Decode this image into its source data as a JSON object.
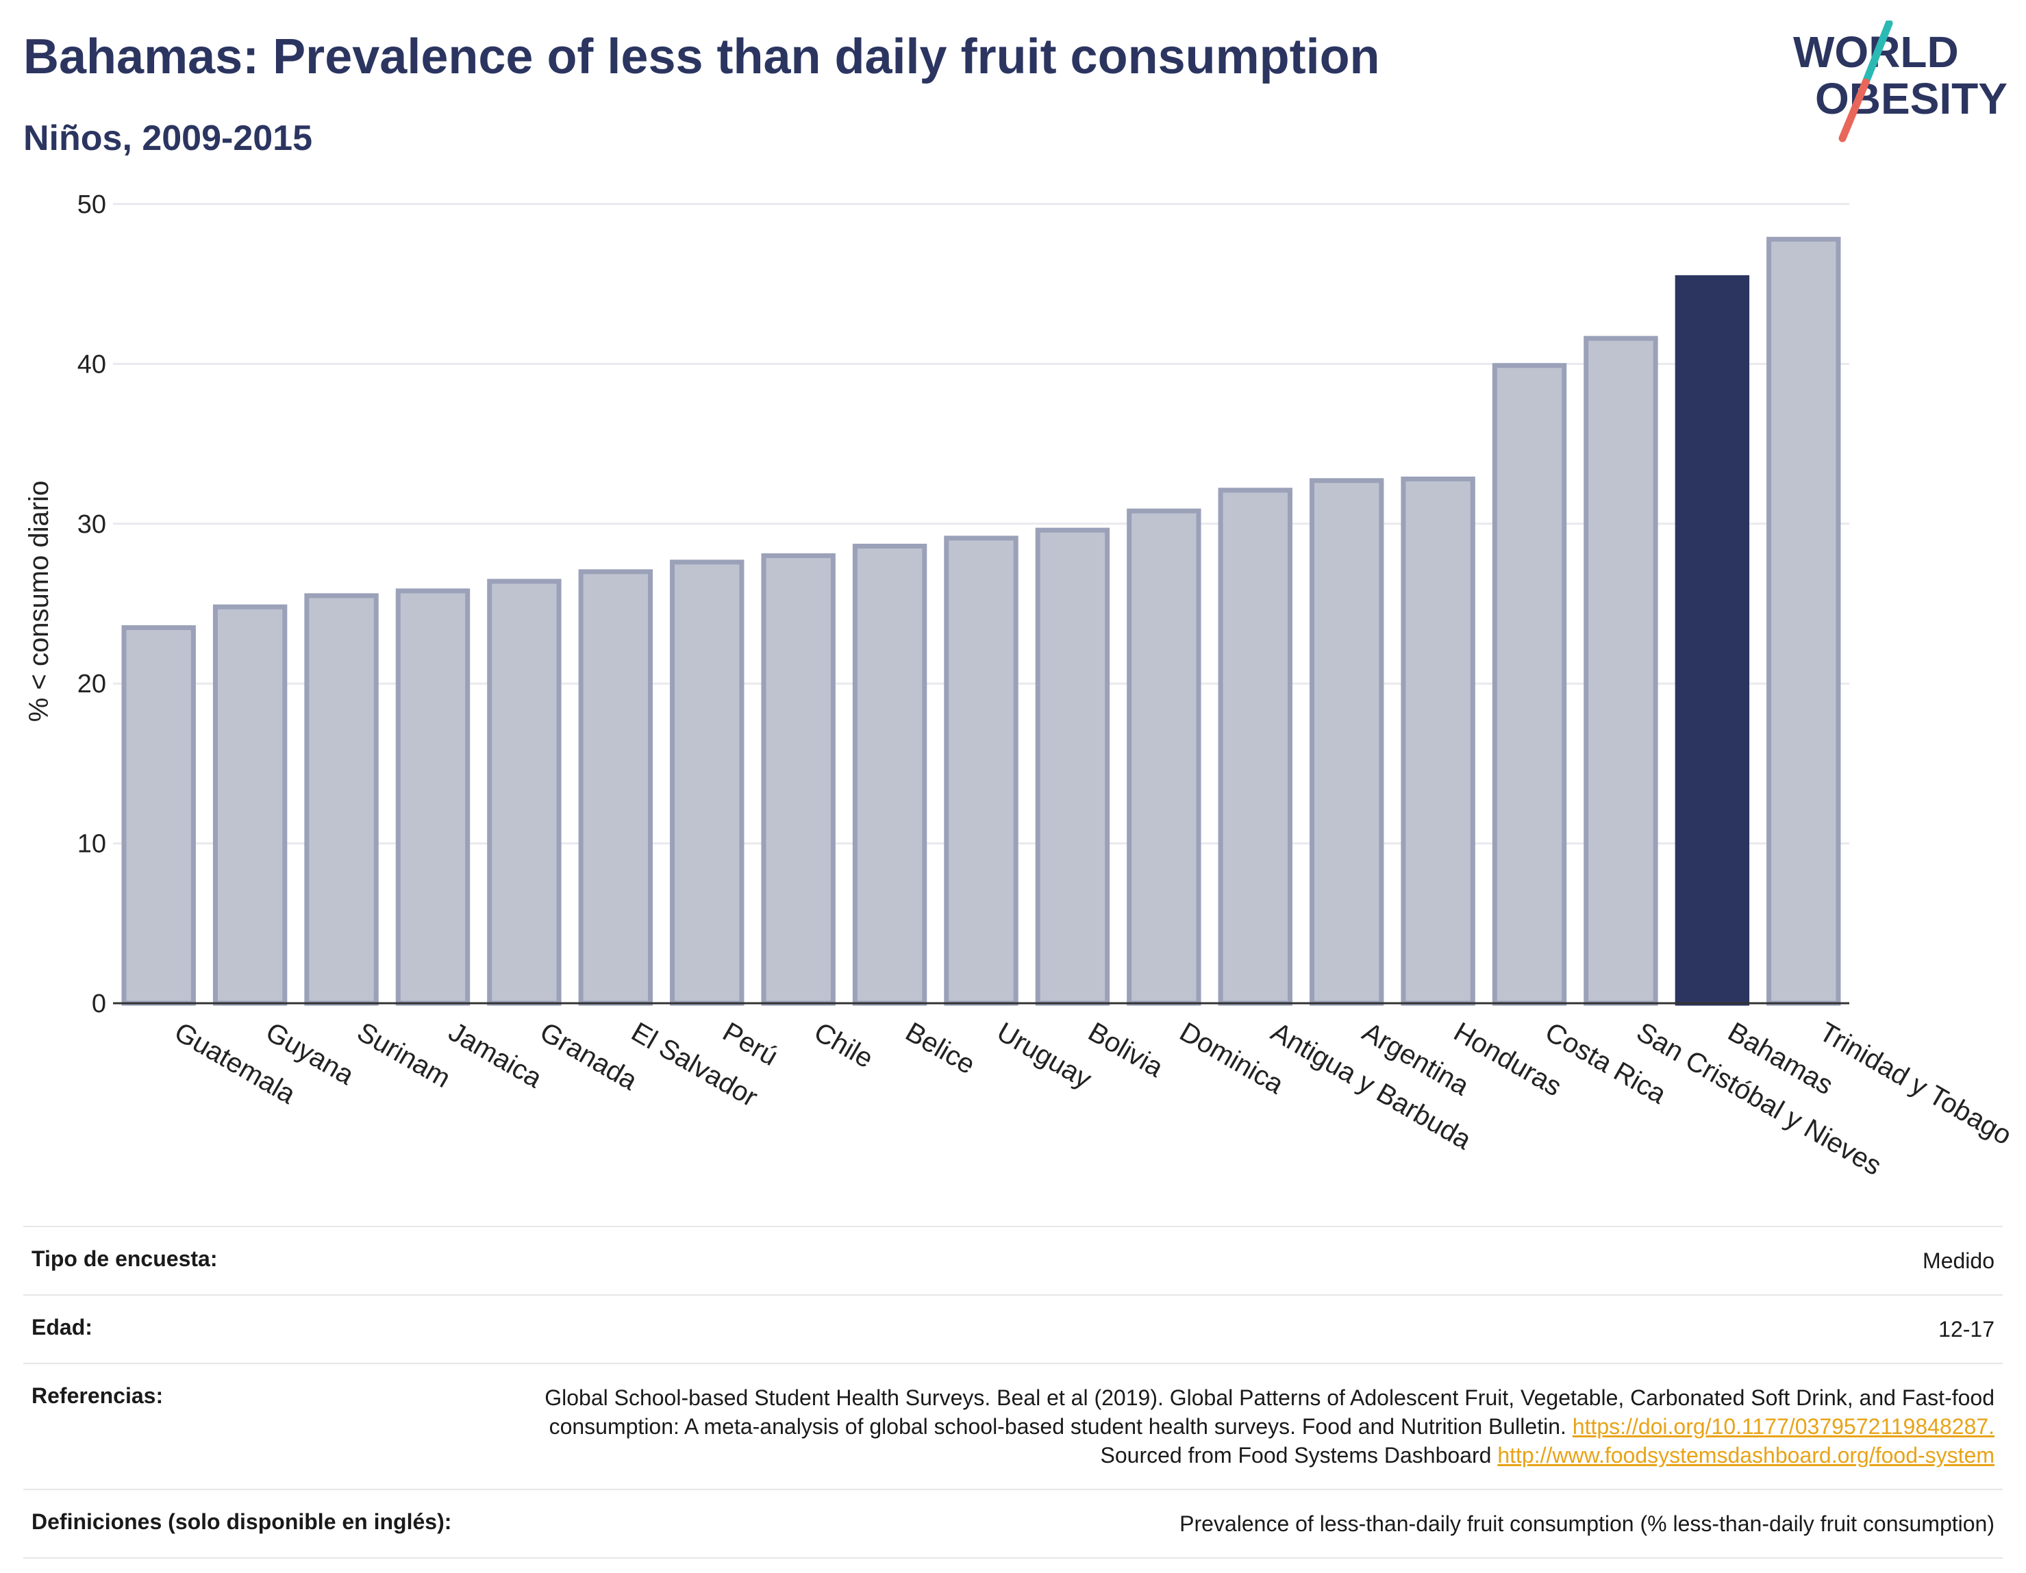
{
  "header": {
    "title": "Bahamas: Prevalence of less than daily fruit consumption",
    "subtitle": "Niños, 2009-2015",
    "logo_line1": "WORLD",
    "logo_line2": "OBESITY"
  },
  "colors": {
    "highlight": "#2b3560",
    "bar_fill": "#bfc3d0",
    "bar_stroke": "#9aa1b8",
    "grid": "#e9e9ee",
    "logo_teal": "#2bb9b4",
    "logo_coral": "#e8675a"
  },
  "chart_data": {
    "type": "bar",
    "title": "Bahamas: Prevalence of less than daily fruit consumption",
    "subtitle": "Niños, 2009-2015",
    "xlabel": "",
    "ylabel": "% < consumo diario",
    "ylim": [
      0,
      50
    ],
    "yticks": [
      0,
      10,
      20,
      30,
      40,
      50
    ],
    "grid": true,
    "highlight": "Bahamas",
    "categories": [
      "Guatemala",
      "Guyana",
      "Surinam",
      "Jamaica",
      "Granada",
      "El Salvador",
      "Perú",
      "Chile",
      "Belice",
      "Uruguay",
      "Bolivia",
      "Dominica",
      "Antigua y Barbuda",
      "Argentina",
      "Honduras",
      "Costa Rica",
      "San Cristóbal y Nieves",
      "Bahamas",
      "Trinidad y Tobago"
    ],
    "values": [
      23.5,
      24.8,
      25.5,
      25.8,
      26.4,
      27.0,
      27.6,
      28.0,
      28.6,
      29.1,
      29.6,
      30.8,
      32.1,
      32.7,
      32.8,
      39.9,
      41.6,
      45.4,
      47.8
    ]
  },
  "meta": {
    "survey_type_label": "Tipo de encuesta:",
    "survey_type_value": "Medido",
    "age_label": "Edad:",
    "age_value": "12-17",
    "references_label": "Referencias:",
    "references_text1": "Global School-based Student Health Surveys. Beal et al (2019). Global Patterns of Adolescent Fruit, Vegetable, Carbonated Soft Drink, and Fast-food consumption: A meta-analysis of global school-based student health surveys. Food and Nutrition Bulletin. ",
    "references_link1": "https://doi.org/10.1177/0379572119848287.",
    "references_text2": " Sourced from Food Systems Dashboard ",
    "references_link2": "http://www.foodsystemsdashboard.org/food-system",
    "definitions_label": "Definiciones (solo disponible en inglés):",
    "definitions_value": "Prevalence of less-than-daily fruit consumption (% less-than-daily fruit consumption)"
  }
}
